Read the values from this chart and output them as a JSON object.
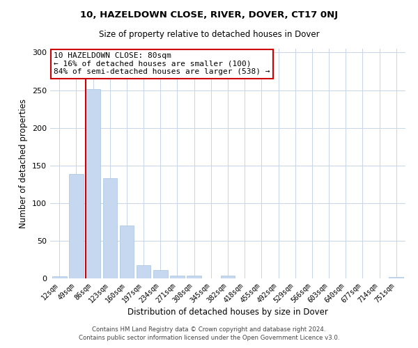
{
  "title": "10, HAZELDOWN CLOSE, RIVER, DOVER, CT17 0NJ",
  "subtitle": "Size of property relative to detached houses in Dover",
  "xlabel": "Distribution of detached houses by size in Dover",
  "ylabel": "Number of detached properties",
  "bar_labels": [
    "12sqm",
    "49sqm",
    "86sqm",
    "123sqm",
    "160sqm",
    "197sqm",
    "234sqm",
    "271sqm",
    "308sqm",
    "345sqm",
    "382sqm",
    "418sqm",
    "455sqm",
    "492sqm",
    "529sqm",
    "566sqm",
    "603sqm",
    "640sqm",
    "677sqm",
    "714sqm",
    "751sqm"
  ],
  "bar_values": [
    3,
    139,
    251,
    133,
    70,
    18,
    11,
    4,
    4,
    0,
    4,
    0,
    0,
    0,
    0,
    0,
    0,
    0,
    0,
    0,
    2
  ],
  "bar_color": "#c5d8f0",
  "bar_edge_color": "#a8c4e0",
  "vline_index": 2,
  "vline_color": "#cc0000",
  "annotation_lines": [
    "10 HAZELDOWN CLOSE: 80sqm",
    "← 16% of detached houses are smaller (100)",
    "84% of semi-detached houses are larger (538) →"
  ],
  "annotation_box_edgecolor": "#cc0000",
  "ylim": [
    0,
    305
  ],
  "yticks": [
    0,
    50,
    100,
    150,
    200,
    250,
    300
  ],
  "footer_lines": [
    "Contains HM Land Registry data © Crown copyright and database right 2024.",
    "Contains public sector information licensed under the Open Government Licence v3.0."
  ],
  "background_color": "#ffffff",
  "grid_color": "#c8d4e8"
}
